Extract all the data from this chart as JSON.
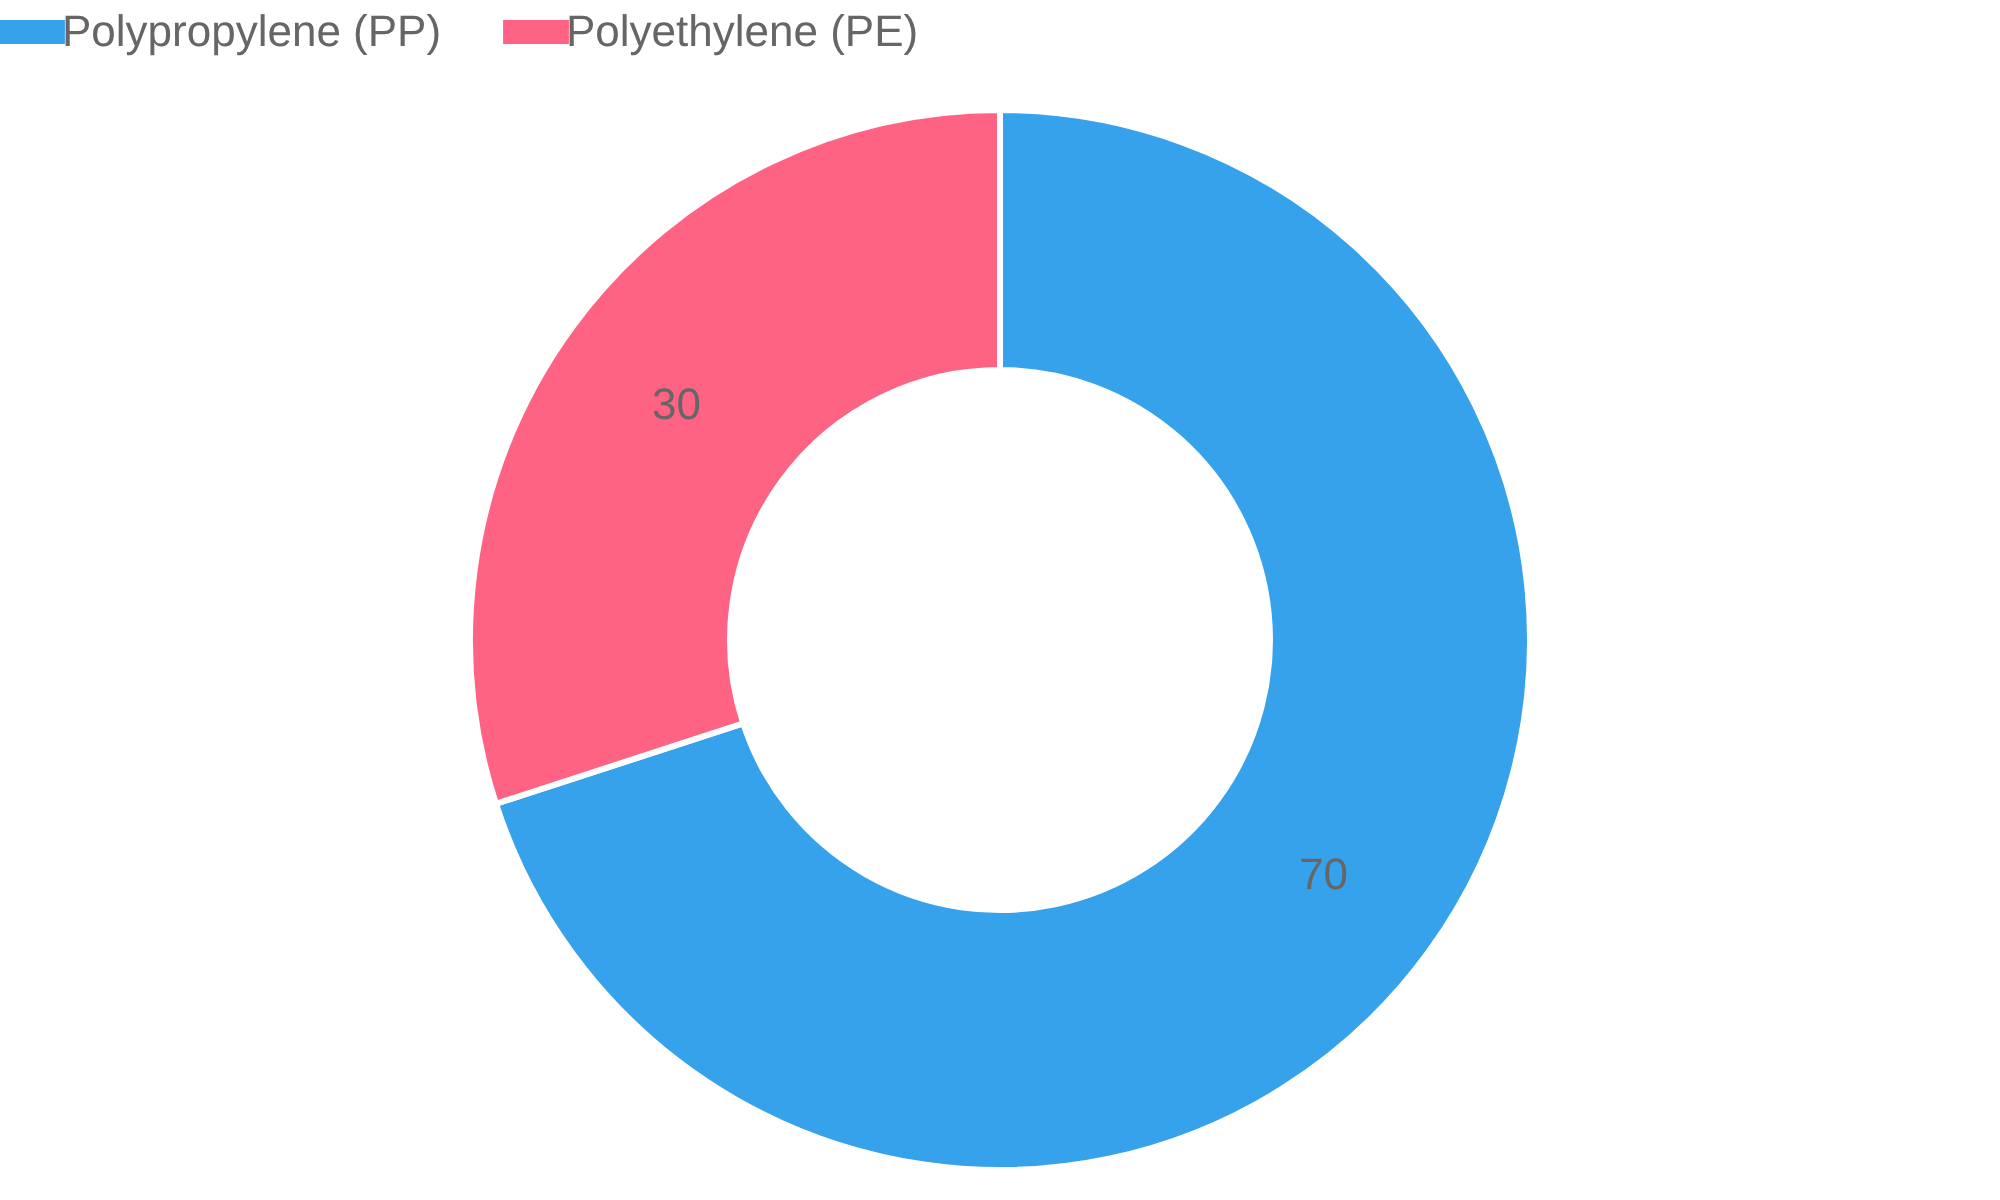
{
  "chart_data": {
    "type": "donut",
    "categories": [
      "Polypropylene (PP)",
      "Polyethylene (PE)"
    ],
    "values": [
      70,
      30
    ],
    "colors": [
      "#36a2eb",
      "#ff6384"
    ],
    "legend": "top",
    "data_labels": true
  }
}
